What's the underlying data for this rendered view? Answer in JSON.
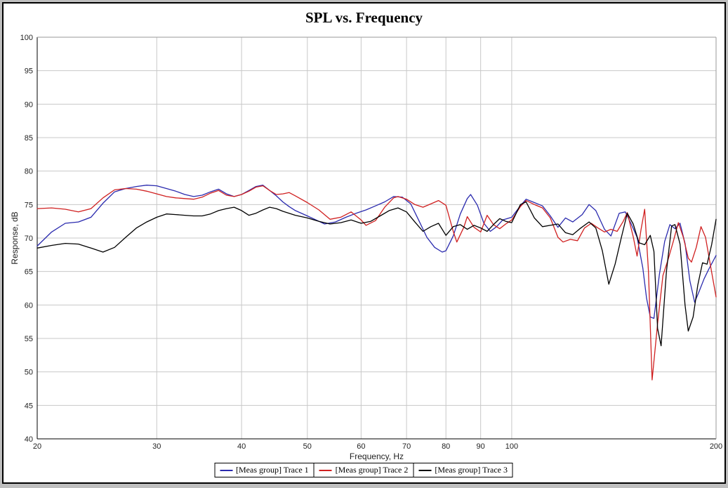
{
  "chart_data": {
    "type": "line",
    "title": "SPL vs. Frequency",
    "xlabel": "Frequency, Hz",
    "ylabel": "Response, dB",
    "x_scale": "log",
    "xlim": [
      20,
      200
    ],
    "ylim": [
      40,
      100
    ],
    "x_ticks": [
      20,
      30,
      40,
      50,
      60,
      70,
      80,
      90,
      100,
      200
    ],
    "y_ticks": [
      40,
      45,
      50,
      55,
      60,
      65,
      70,
      75,
      80,
      85,
      90,
      95,
      100
    ],
    "grid": true,
    "legend_position": "bottom-center",
    "colors": {
      "grid": "#c8c8c8",
      "axis": "#000000",
      "background": "#ffffff"
    },
    "series": [
      {
        "name": "[Meas group] Trace 1",
        "color": "#2a2aae",
        "points": [
          [
            20,
            68.8
          ],
          [
            21,
            70.9
          ],
          [
            22,
            72.2
          ],
          [
            23,
            72.4
          ],
          [
            24,
            73.1
          ],
          [
            25,
            75.2
          ],
          [
            26,
            76.9
          ],
          [
            27,
            77.4
          ],
          [
            28,
            77.7
          ],
          [
            29,
            77.9
          ],
          [
            30,
            77.8
          ],
          [
            31,
            77.4
          ],
          [
            32,
            77.0
          ],
          [
            33,
            76.5
          ],
          [
            34,
            76.2
          ],
          [
            35,
            76.4
          ],
          [
            36,
            76.9
          ],
          [
            37,
            77.3
          ],
          [
            38,
            76.6
          ],
          [
            39,
            76.2
          ],
          [
            40,
            76.5
          ],
          [
            41,
            77.1
          ],
          [
            42,
            77.7
          ],
          [
            43,
            77.9
          ],
          [
            44,
            77.1
          ],
          [
            45,
            76.3
          ],
          [
            46,
            75.4
          ],
          [
            47,
            74.7
          ],
          [
            48,
            74.1
          ],
          [
            50,
            73.3
          ],
          [
            52,
            72.5
          ],
          [
            53,
            72.1
          ],
          [
            55,
            72.4
          ],
          [
            57,
            73.1
          ],
          [
            59,
            73.7
          ],
          [
            61,
            74.2
          ],
          [
            63,
            74.8
          ],
          [
            65,
            75.4
          ],
          [
            67,
            76.2
          ],
          [
            69,
            76.1
          ],
          [
            71,
            75.1
          ],
          [
            73,
            72.6
          ],
          [
            75,
            70.1
          ],
          [
            77,
            68.6
          ],
          [
            79,
            67.9
          ],
          [
            80,
            68.1
          ],
          [
            82,
            70.3
          ],
          [
            84,
            73.6
          ],
          [
            86,
            75.9
          ],
          [
            87,
            76.5
          ],
          [
            89,
            74.9
          ],
          [
            91,
            72.2
          ],
          [
            93,
            71.0
          ],
          [
            95,
            71.7
          ],
          [
            97,
            72.7
          ],
          [
            100,
            73.1
          ],
          [
            103,
            74.8
          ],
          [
            105,
            75.8
          ],
          [
            108,
            75.3
          ],
          [
            111,
            74.8
          ],
          [
            114,
            73.3
          ],
          [
            117,
            71.6
          ],
          [
            120,
            73.0
          ],
          [
            123,
            72.4
          ],
          [
            127,
            73.5
          ],
          [
            130,
            75.0
          ],
          [
            133,
            74.1
          ],
          [
            137,
            71.3
          ],
          [
            140,
            70.3
          ],
          [
            144,
            73.7
          ],
          [
            147,
            73.9
          ],
          [
            150,
            72.1
          ],
          [
            153,
            70.1
          ],
          [
            156,
            65.5
          ],
          [
            158,
            61.0
          ],
          [
            160,
            58.2
          ],
          [
            162,
            58.0
          ],
          [
            165,
            64.5
          ],
          [
            168,
            69.5
          ],
          [
            171,
            72.0
          ],
          [
            174,
            71.4
          ],
          [
            177,
            72.2
          ],
          [
            180,
            69.2
          ],
          [
            183,
            63.6
          ],
          [
            186,
            60.4
          ],
          [
            189,
            62.1
          ],
          [
            192,
            63.9
          ],
          [
            195,
            65.3
          ],
          [
            200,
            67.4
          ]
        ]
      },
      {
        "name": "[Meas group] Trace 2",
        "color": "#d02020",
        "points": [
          [
            20,
            74.4
          ],
          [
            21,
            74.5
          ],
          [
            22,
            74.3
          ],
          [
            23,
            73.9
          ],
          [
            24,
            74.4
          ],
          [
            25,
            76.0
          ],
          [
            26,
            77.2
          ],
          [
            27,
            77.4
          ],
          [
            28,
            77.3
          ],
          [
            29,
            77.0
          ],
          [
            30,
            76.6
          ],
          [
            31,
            76.2
          ],
          [
            32,
            76.0
          ],
          [
            33,
            75.9
          ],
          [
            34,
            75.8
          ],
          [
            35,
            76.1
          ],
          [
            36,
            76.7
          ],
          [
            37,
            77.1
          ],
          [
            38,
            76.4
          ],
          [
            39,
            76.2
          ],
          [
            40,
            76.5
          ],
          [
            41,
            77.0
          ],
          [
            42,
            77.6
          ],
          [
            43,
            77.8
          ],
          [
            44,
            77.1
          ],
          [
            45,
            76.5
          ],
          [
            46,
            76.6
          ],
          [
            47,
            76.8
          ],
          [
            48,
            76.3
          ],
          [
            50,
            75.3
          ],
          [
            52,
            74.2
          ],
          [
            54,
            72.8
          ],
          [
            56,
            73.1
          ],
          [
            58,
            73.9
          ],
          [
            60,
            72.7
          ],
          [
            61,
            71.9
          ],
          [
            63,
            72.6
          ],
          [
            65,
            74.6
          ],
          [
            67,
            76.0
          ],
          [
            68,
            76.2
          ],
          [
            70,
            75.8
          ],
          [
            72,
            75.0
          ],
          [
            74,
            74.6
          ],
          [
            76,
            75.1
          ],
          [
            78,
            75.6
          ],
          [
            80,
            74.9
          ],
          [
            82,
            71.0
          ],
          [
            83,
            69.4
          ],
          [
            85,
            71.6
          ],
          [
            86,
            73.2
          ],
          [
            88,
            71.6
          ],
          [
            90,
            70.9
          ],
          [
            92,
            73.4
          ],
          [
            94,
            72.0
          ],
          [
            96,
            71.4
          ],
          [
            98,
            72.1
          ],
          [
            100,
            72.7
          ],
          [
            103,
            74.7
          ],
          [
            105,
            75.6
          ],
          [
            108,
            75.0
          ],
          [
            111,
            74.5
          ],
          [
            114,
            73.0
          ],
          [
            117,
            70.1
          ],
          [
            119,
            69.4
          ],
          [
            122,
            69.8
          ],
          [
            125,
            69.6
          ],
          [
            128,
            71.5
          ],
          [
            131,
            72.2
          ],
          [
            134,
            71.5
          ],
          [
            137,
            70.9
          ],
          [
            140,
            71.3
          ],
          [
            143,
            71.0
          ],
          [
            146,
            72.5
          ],
          [
            148,
            73.8
          ],
          [
            151,
            70.2
          ],
          [
            153,
            67.3
          ],
          [
            155,
            71.2
          ],
          [
            157,
            74.3
          ],
          [
            159,
            65.0
          ],
          [
            161,
            48.8
          ],
          [
            164,
            57.2
          ],
          [
            167,
            64.4
          ],
          [
            170,
            66.8
          ],
          [
            173,
            69.5
          ],
          [
            176,
            72.3
          ],
          [
            179,
            70.1
          ],
          [
            182,
            67.0
          ],
          [
            184,
            66.4
          ],
          [
            187,
            68.6
          ],
          [
            190,
            71.7
          ],
          [
            193,
            70.1
          ],
          [
            196,
            66.2
          ],
          [
            200,
            61.2
          ]
        ]
      },
      {
        "name": "[Meas group] Trace 3",
        "color": "#000000",
        "points": [
          [
            20,
            68.5
          ],
          [
            21,
            68.9
          ],
          [
            22,
            69.2
          ],
          [
            23,
            69.1
          ],
          [
            24,
            68.5
          ],
          [
            25,
            67.9
          ],
          [
            26,
            68.6
          ],
          [
            27,
            70.1
          ],
          [
            28,
            71.5
          ],
          [
            29,
            72.4
          ],
          [
            30,
            73.1
          ],
          [
            31,
            73.6
          ],
          [
            32,
            73.5
          ],
          [
            33,
            73.4
          ],
          [
            34,
            73.3
          ],
          [
            35,
            73.3
          ],
          [
            36,
            73.6
          ],
          [
            37,
            74.1
          ],
          [
            38,
            74.4
          ],
          [
            39,
            74.6
          ],
          [
            40,
            74.1
          ],
          [
            41,
            73.4
          ],
          [
            42,
            73.7
          ],
          [
            43,
            74.2
          ],
          [
            44,
            74.6
          ],
          [
            45,
            74.4
          ],
          [
            46,
            74.0
          ],
          [
            47,
            73.7
          ],
          [
            48,
            73.4
          ],
          [
            50,
            73.0
          ],
          [
            52,
            72.5
          ],
          [
            54,
            72.1
          ],
          [
            56,
            72.3
          ],
          [
            58,
            72.7
          ],
          [
            60,
            72.2
          ],
          [
            62,
            72.5
          ],
          [
            64,
            73.3
          ],
          [
            66,
            74.1
          ],
          [
            68,
            74.5
          ],
          [
            70,
            73.9
          ],
          [
            72,
            72.4
          ],
          [
            74,
            71.0
          ],
          [
            76,
            71.7
          ],
          [
            78,
            72.2
          ],
          [
            80,
            70.4
          ],
          [
            82,
            71.7
          ],
          [
            84,
            72.0
          ],
          [
            86,
            71.3
          ],
          [
            88,
            71.9
          ],
          [
            90,
            71.5
          ],
          [
            92,
            71.0
          ],
          [
            94,
            72.0
          ],
          [
            96,
            72.9
          ],
          [
            98,
            72.5
          ],
          [
            100,
            72.3
          ],
          [
            103,
            75.0
          ],
          [
            105,
            75.4
          ],
          [
            108,
            73.0
          ],
          [
            111,
            71.7
          ],
          [
            114,
            71.9
          ],
          [
            117,
            72.1
          ],
          [
            120,
            70.8
          ],
          [
            123,
            70.5
          ],
          [
            126,
            71.4
          ],
          [
            130,
            72.4
          ],
          [
            133,
            71.5
          ],
          [
            136,
            68.1
          ],
          [
            139,
            63.1
          ],
          [
            142,
            66.1
          ],
          [
            145,
            70.0
          ],
          [
            148,
            73.7
          ],
          [
            151,
            72.1
          ],
          [
            154,
            69.3
          ],
          [
            157,
            69.0
          ],
          [
            160,
            70.4
          ],
          [
            162,
            68.0
          ],
          [
            164,
            56.5
          ],
          [
            166,
            53.9
          ],
          [
            169,
            65.0
          ],
          [
            172,
            71.8
          ],
          [
            174,
            72.0
          ],
          [
            177,
            69.1
          ],
          [
            180,
            60.0
          ],
          [
            182,
            56.1
          ],
          [
            185,
            58.2
          ],
          [
            188,
            63.0
          ],
          [
            191,
            66.3
          ],
          [
            194,
            66.1
          ],
          [
            197,
            69.0
          ],
          [
            200,
            72.8
          ]
        ]
      }
    ]
  }
}
